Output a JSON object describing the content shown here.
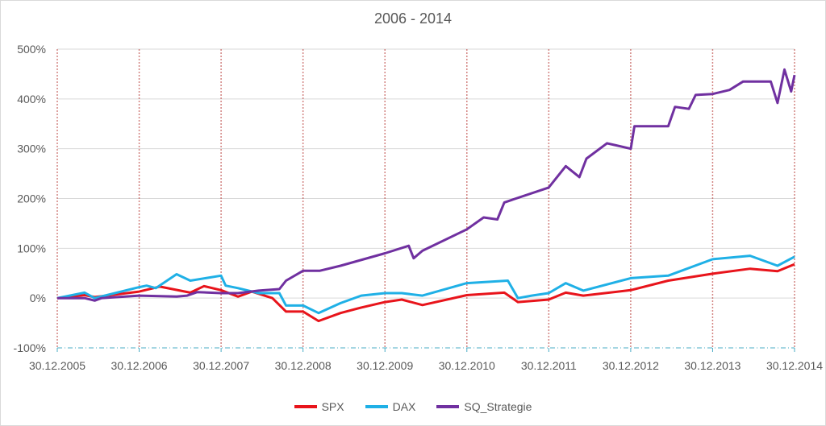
{
  "chart_data": {
    "type": "line",
    "title": "2006 - 2014",
    "xlabel": "",
    "ylabel": "",
    "ylim": [
      -100,
      500
    ],
    "yticks": [
      "-100%",
      "0%",
      "100%",
      "200%",
      "300%",
      "400%",
      "500%"
    ],
    "ytick_values": [
      -100,
      0,
      100,
      200,
      300,
      400,
      500
    ],
    "xticks": [
      "30.12.2005",
      "30.12.2006",
      "30.12.2007",
      "30.12.2008",
      "30.12.2009",
      "30.12.2010",
      "30.12.2011",
      "30.12.2012",
      "30.12.2013",
      "30.12.2014"
    ],
    "xlim": [
      "2005-12-30",
      "2014-12-30"
    ],
    "grid": "horizontal solid, vertical dotted red at year ticks",
    "legend_position": "bottom",
    "series": [
      {
        "name": "SPX",
        "color": "#e8141b",
        "points": [
          [
            "2005-12-30",
            0
          ],
          [
            "2006-05-01",
            6
          ],
          [
            "2006-06-15",
            2
          ],
          [
            "2006-12-30",
            13
          ],
          [
            "2007-04-01",
            23
          ],
          [
            "2007-08-15",
            11
          ],
          [
            "2007-10-15",
            24
          ],
          [
            "2007-12-30",
            16
          ],
          [
            "2008-03-15",
            3
          ],
          [
            "2008-05-15",
            13
          ],
          [
            "2008-08-15",
            0
          ],
          [
            "2008-10-15",
            -27
          ],
          [
            "2008-12-30",
            -27
          ],
          [
            "2009-03-09",
            -46
          ],
          [
            "2009-06-15",
            -30
          ],
          [
            "2009-09-15",
            -19
          ],
          [
            "2009-12-30",
            -8
          ],
          [
            "2010-03-15",
            -3
          ],
          [
            "2010-06-15",
            -14
          ],
          [
            "2010-12-30",
            6
          ],
          [
            "2011-06-15",
            11
          ],
          [
            "2011-08-15",
            -8
          ],
          [
            "2011-12-30",
            -3
          ],
          [
            "2012-03-15",
            11
          ],
          [
            "2012-06-01",
            5
          ],
          [
            "2012-12-30",
            16
          ],
          [
            "2013-06-15",
            35
          ],
          [
            "2013-12-30",
            49
          ],
          [
            "2014-06-15",
            59
          ],
          [
            "2014-10-15",
            54
          ],
          [
            "2014-12-30",
            68
          ]
        ]
      },
      {
        "name": "DAX",
        "color": "#1fb0e6",
        "points": [
          [
            "2005-12-30",
            0
          ],
          [
            "2006-05-01",
            11
          ],
          [
            "2006-06-15",
            0
          ],
          [
            "2006-12-30",
            22
          ],
          [
            "2007-02-01",
            25
          ],
          [
            "2007-03-15",
            20
          ],
          [
            "2007-06-15",
            48
          ],
          [
            "2007-08-15",
            35
          ],
          [
            "2007-12-30",
            45
          ],
          [
            "2008-01-20",
            25
          ],
          [
            "2008-03-15",
            20
          ],
          [
            "2008-06-15",
            10
          ],
          [
            "2008-09-15",
            10
          ],
          [
            "2008-10-15",
            -15
          ],
          [
            "2008-12-30",
            -15
          ],
          [
            "2009-03-09",
            -30
          ],
          [
            "2009-06-15",
            -10
          ],
          [
            "2009-09-15",
            5
          ],
          [
            "2009-12-30",
            10
          ],
          [
            "2010-03-15",
            10
          ],
          [
            "2010-06-15",
            5
          ],
          [
            "2010-12-30",
            30
          ],
          [
            "2011-07-01",
            35
          ],
          [
            "2011-08-15",
            0
          ],
          [
            "2011-10-15",
            5
          ],
          [
            "2011-12-30",
            10
          ],
          [
            "2012-03-15",
            30
          ],
          [
            "2012-06-01",
            15
          ],
          [
            "2012-12-30",
            40
          ],
          [
            "2013-06-15",
            45
          ],
          [
            "2013-12-30",
            78
          ],
          [
            "2014-06-15",
            85
          ],
          [
            "2014-10-15",
            65
          ],
          [
            "2014-12-30",
            83
          ]
        ]
      },
      {
        "name": "SQ_Strategie",
        "color": "#7030a0",
        "points": [
          [
            "2005-12-30",
            0
          ],
          [
            "2006-05-01",
            0
          ],
          [
            "2006-06-15",
            -5
          ],
          [
            "2006-07-15",
            0
          ],
          [
            "2006-12-30",
            5
          ],
          [
            "2007-06-15",
            3
          ],
          [
            "2007-08-01",
            5
          ],
          [
            "2007-09-15",
            12
          ],
          [
            "2007-12-30",
            10
          ],
          [
            "2008-03-15",
            10
          ],
          [
            "2008-06-15",
            15
          ],
          [
            "2008-09-15",
            18
          ],
          [
            "2008-10-15",
            35
          ],
          [
            "2008-12-30",
            55
          ],
          [
            "2009-03-15",
            55
          ],
          [
            "2009-06-15",
            65
          ],
          [
            "2009-12-30",
            90
          ],
          [
            "2010-04-15",
            105
          ],
          [
            "2010-05-07",
            80
          ],
          [
            "2010-06-15",
            95
          ],
          [
            "2010-12-30",
            138
          ],
          [
            "2011-03-15",
            162
          ],
          [
            "2011-05-15",
            158
          ],
          [
            "2011-06-15",
            192
          ],
          [
            "2011-12-30",
            222
          ],
          [
            "2012-03-15",
            265
          ],
          [
            "2012-05-15",
            243
          ],
          [
            "2012-06-15",
            280
          ],
          [
            "2012-09-15",
            311
          ],
          [
            "2012-12-30",
            300
          ],
          [
            "2013-01-15",
            345
          ],
          [
            "2013-06-15",
            345
          ],
          [
            "2013-07-15",
            384
          ],
          [
            "2013-09-15",
            380
          ],
          [
            "2013-10-15",
            408
          ],
          [
            "2013-12-30",
            410
          ],
          [
            "2014-03-15",
            418
          ],
          [
            "2014-05-15",
            435
          ],
          [
            "2014-09-15",
            435
          ],
          [
            "2014-10-15",
            392
          ],
          [
            "2014-11-15",
            459
          ],
          [
            "2014-12-15",
            415
          ],
          [
            "2014-12-30",
            448
          ]
        ]
      }
    ]
  }
}
